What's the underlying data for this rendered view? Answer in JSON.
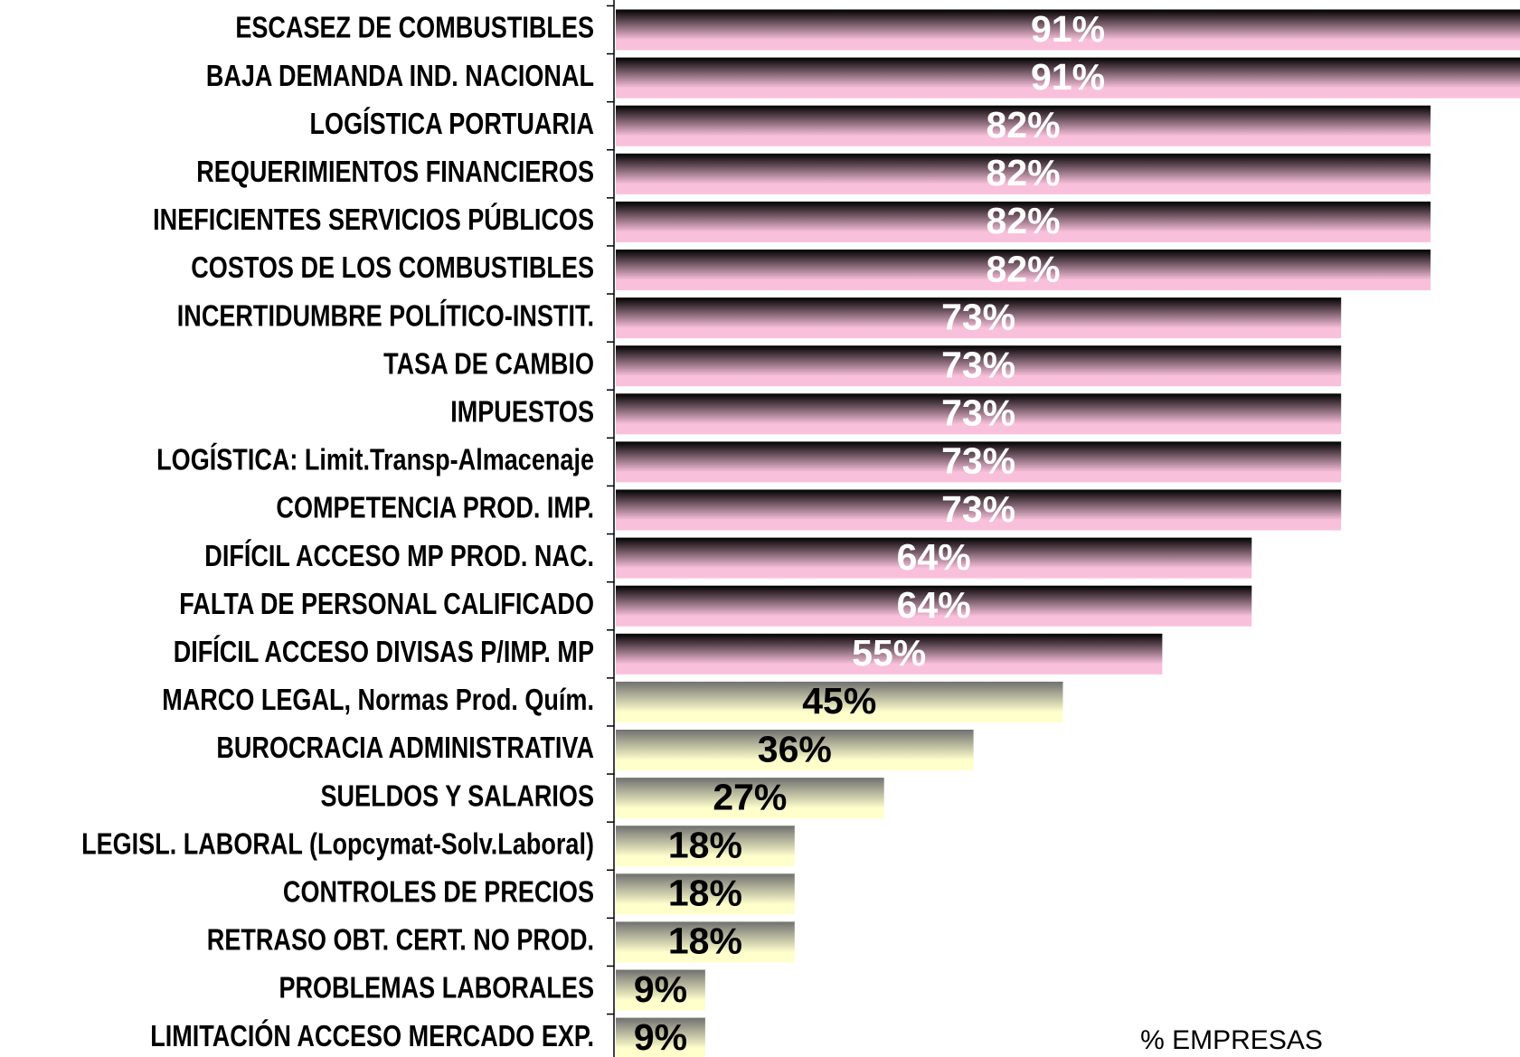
{
  "chart_data": {
    "type": "barh",
    "categories": [
      "ESCASEZ DE COMBUSTIBLES",
      "BAJA DEMANDA IND. NACIONAL",
      "LOGÍSTICA PORTUARIA",
      "REQUERIMIENTOS FINANCIEROS",
      "INEFICIENTES SERVICIOS PÚBLICOS",
      "COSTOS DE LOS COMBUSTIBLES",
      "INCERTIDUMBRE POLÍTICO-INSTIT.",
      "TASA DE CAMBIO",
      "IMPUESTOS",
      "LOGÍSTICA: Limit.Transp-Almacenaje",
      "COMPETENCIA PROD. IMP.",
      "DIFÍCIL ACCESO MP PROD. NAC.",
      "FALTA DE PERSONAL CALIFICADO",
      "DIFÍCIL ACCESO DIVISAS P/IMP. MP",
      "MARCO LEGAL, Normas Prod. Quím.",
      "BUROCRACIA ADMINISTRATIVA",
      "SUELDOS Y SALARIOS",
      "LEGISL. LABORAL (Lopcymat-Solv.Laboral)",
      "CONTROLES DE PRECIOS",
      "RETRASO OBT. CERT. NO PROD.",
      "PROBLEMAS LABORALES",
      "LIMITACIÓN ACCESO MERCADO EXP."
    ],
    "values": [
      91,
      91,
      82,
      82,
      82,
      82,
      73,
      73,
      73,
      73,
      73,
      64,
      64,
      55,
      45,
      36,
      27,
      18,
      18,
      18,
      9,
      9
    ],
    "value_labels": [
      "91%",
      "91%",
      "82%",
      "82%",
      "82%",
      "82%",
      "73%",
      "73%",
      "73%",
      "73%",
      "73%",
      "64%",
      "64%",
      "55%",
      "45%",
      "36%",
      "27%",
      "18%",
      "18%",
      "18%",
      "9%",
      "9%"
    ],
    "colors": [
      "#f9c0dc",
      "#f9c0dc",
      "#f9c0dc",
      "#f9c0dc",
      "#f9c0dc",
      "#f9c0dc",
      "#f9c0dc",
      "#f9c0dc",
      "#f9c0dc",
      "#f9c0dc",
      "#f9c0dc",
      "#f9c0dc",
      "#f9c0dc",
      "#f9c0dc",
      "#ffffcc",
      "#ffffcc",
      "#ffffcc",
      "#ffffcc",
      "#ffffcc",
      "#ffffcc",
      "#ffffcc",
      "#ffffcc"
    ],
    "xlim": [
      0,
      91
    ],
    "xlabel": "% EMPRESAS"
  }
}
